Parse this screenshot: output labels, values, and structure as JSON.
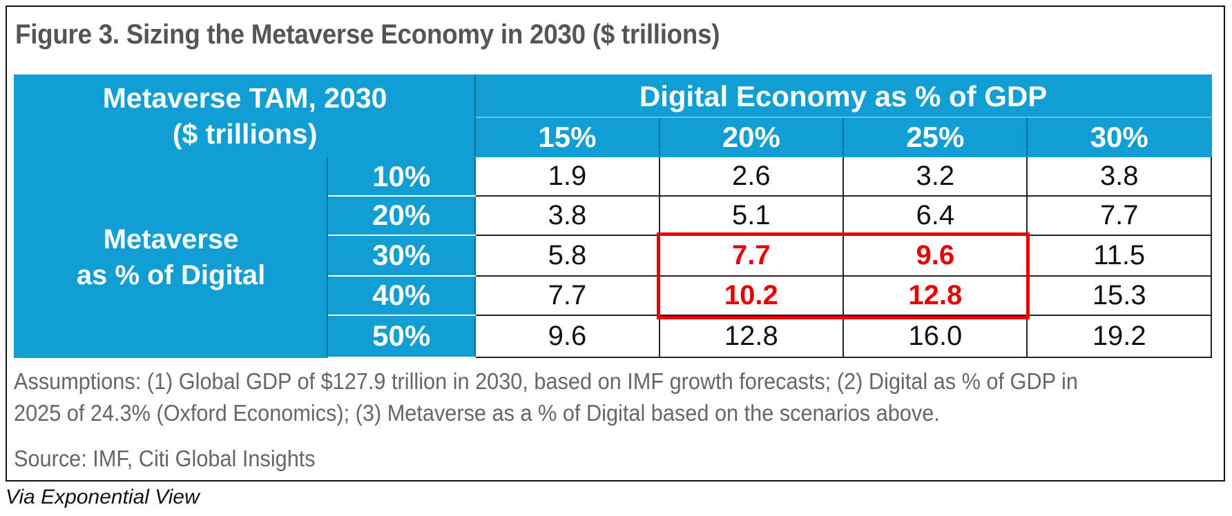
{
  "chart_data": {
    "type": "table",
    "title": "Figure 3. Sizing the Metaverse Economy in 2030 ($ trillions)",
    "corner_label": [
      "Metaverse TAM, 2030",
      "($ trillions)"
    ],
    "column_group_label": "Digital Economy as % of GDP",
    "columns": [
      "15%",
      "20%",
      "25%",
      "30%"
    ],
    "row_group_label": [
      "Metaverse",
      "as % of Digital"
    ],
    "rows": [
      "10%",
      "20%",
      "30%",
      "40%",
      "50%"
    ],
    "values": [
      [
        "1.9",
        "2.6",
        "3.2",
        "3.8"
      ],
      [
        "3.8",
        "5.1",
        "6.4",
        "7.7"
      ],
      [
        "5.8",
        "7.7",
        "9.6",
        "11.5"
      ],
      [
        "7.7",
        "10.2",
        "12.8",
        "15.3"
      ],
      [
        "9.6",
        "12.8",
        "16.0",
        "19.2"
      ]
    ],
    "highlighted_rows": [
      "30%",
      "40%"
    ],
    "highlighted_columns": [
      "20%",
      "25%"
    ],
    "highlight_color": "#e60000",
    "header_color": "#119ed5"
  },
  "notes": [
    "Assumptions: (1) Global GDP of $127.9 trillion in 2030, based on IMF growth forecasts; (2) Digital as % of GDP in",
    "2025 of 24.3% (Oxford Economics); (3) Metaverse as a % of Digital based on the scenarios above."
  ],
  "source": "Source: IMF, Citi Global Insights",
  "via": "Via Exponential View"
}
